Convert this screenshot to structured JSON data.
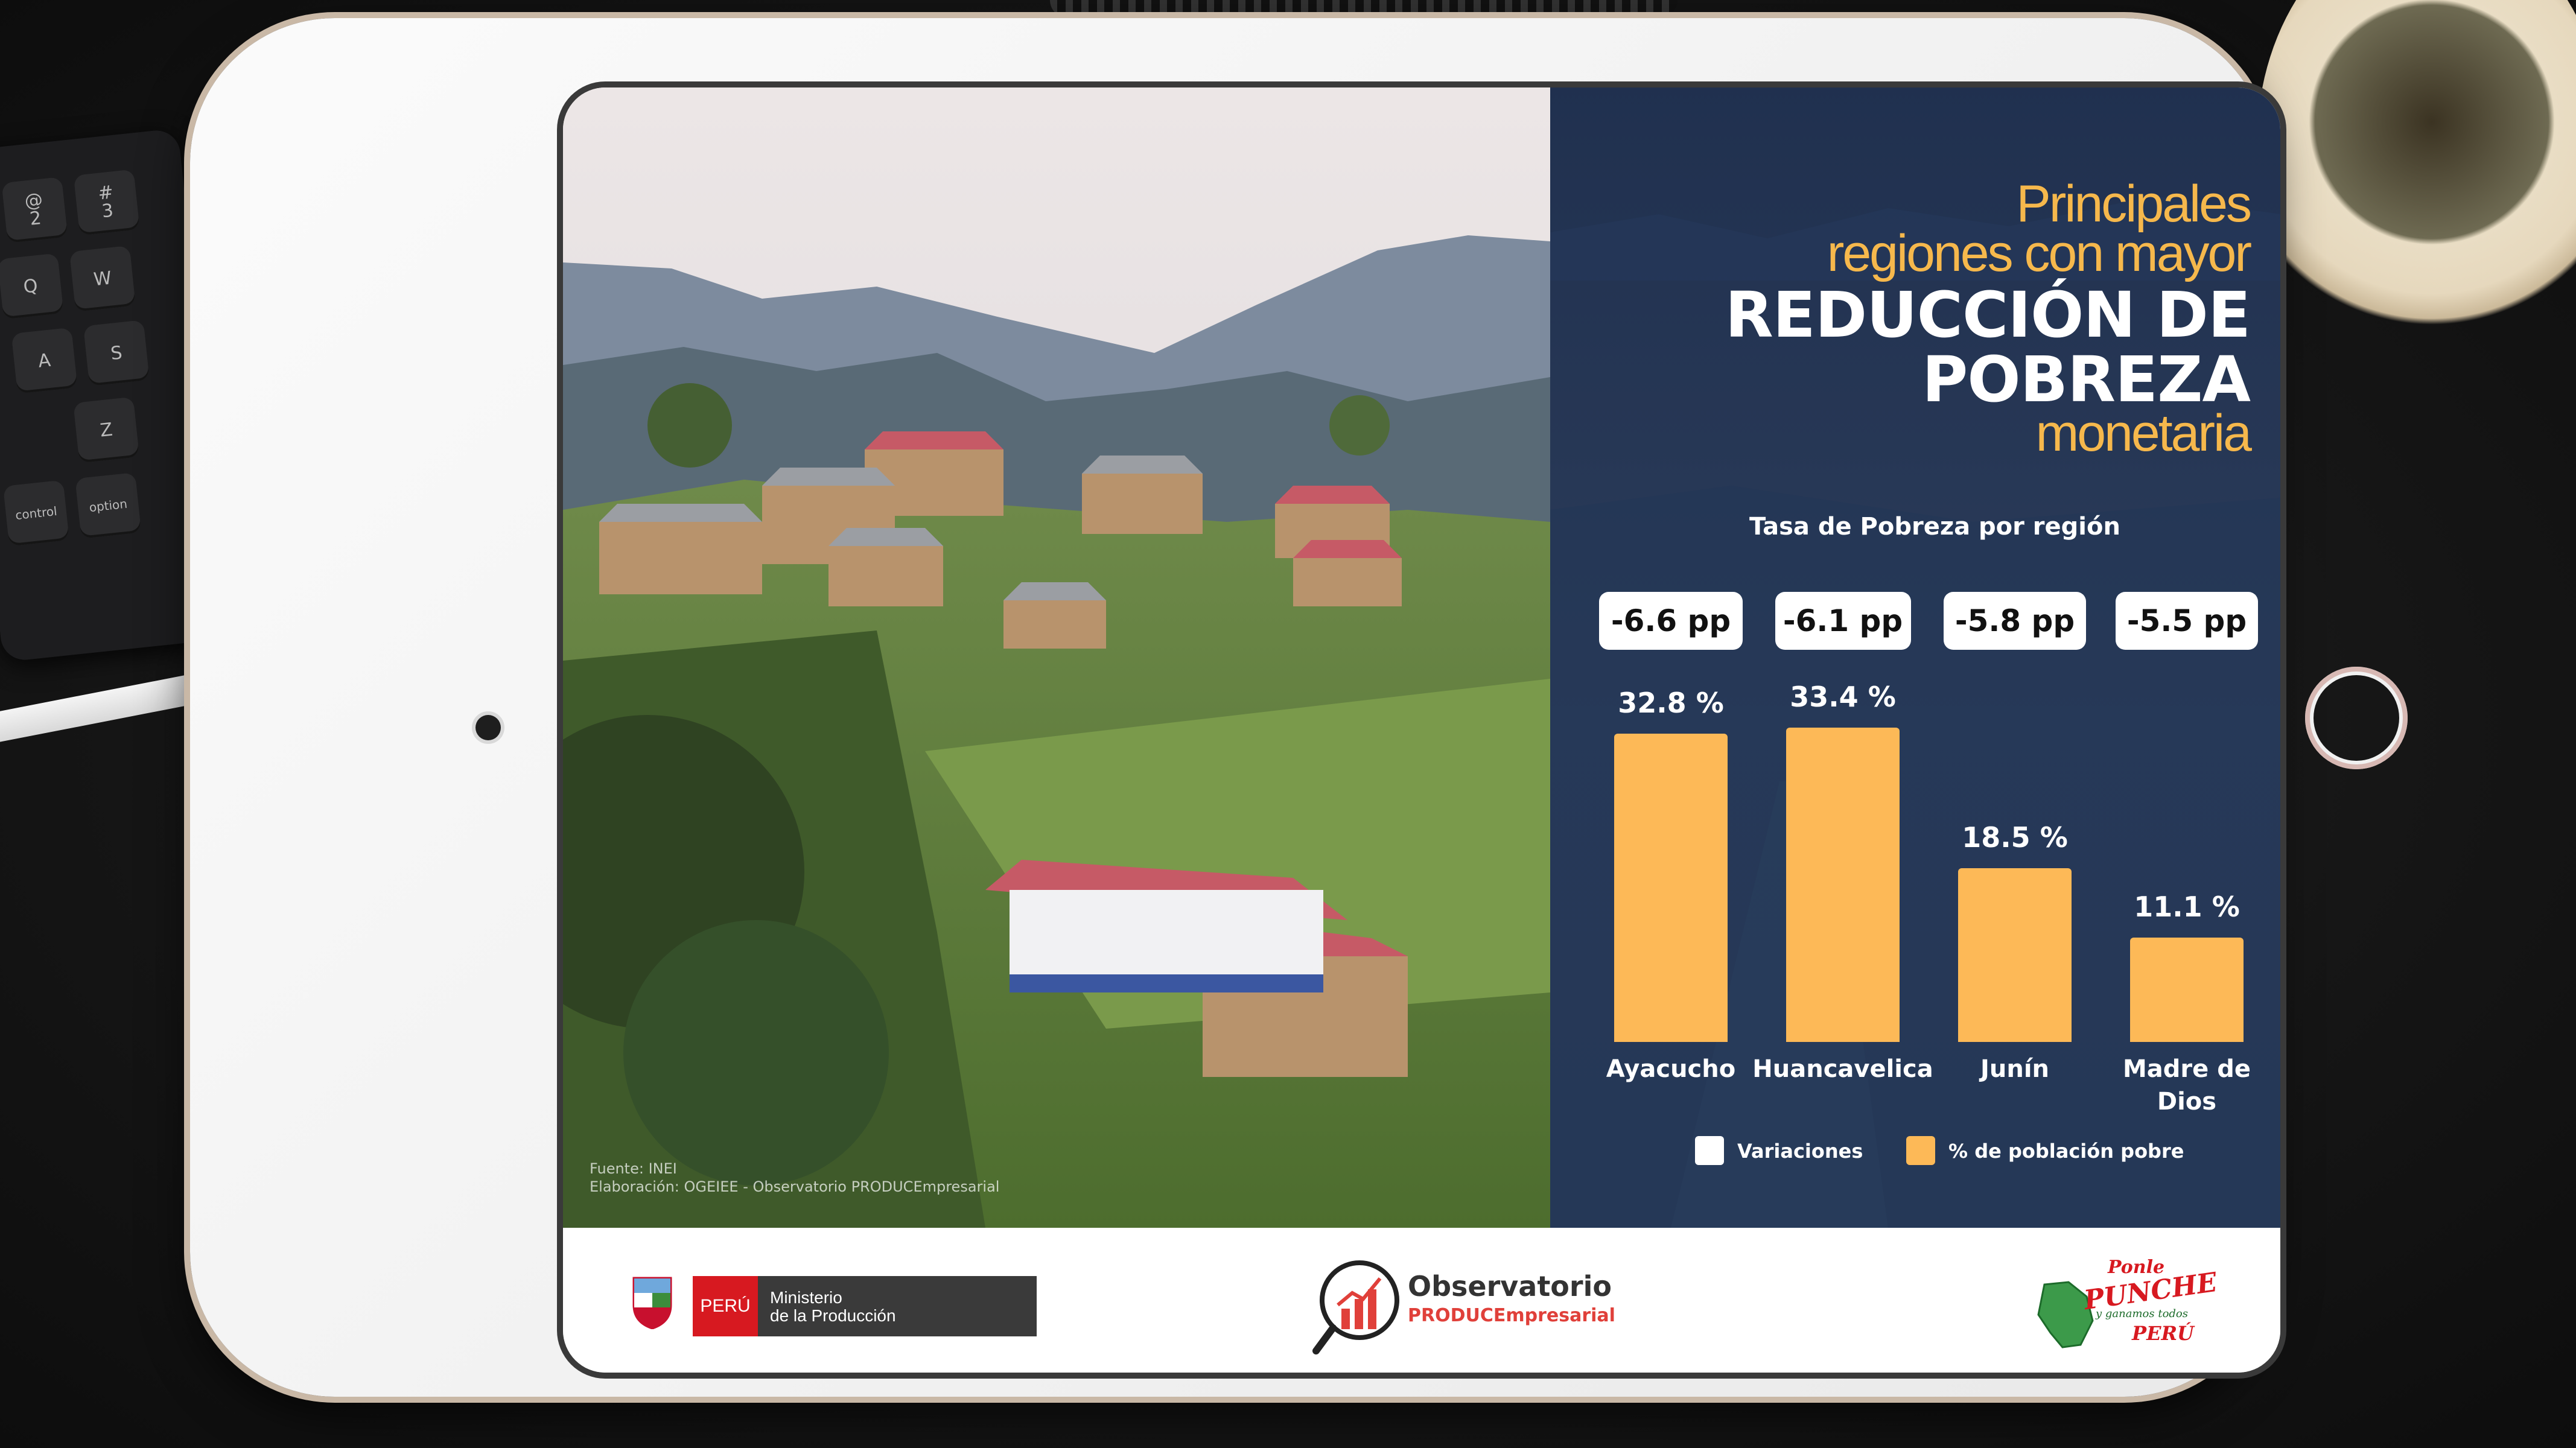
{
  "infographic": {
    "title_line1": "Principales",
    "title_line2": "regiones con mayor",
    "title_line3": "REDUCCIÓN DE",
    "title_line4": "POBREZA",
    "title_line5": "monetaria"
  },
  "chart_data": {
    "type": "bar",
    "title": "Tasa de Pobreza por región",
    "categories": [
      "Ayacucho",
      "Huancavelica",
      "Junín",
      "Madre de\nDios"
    ],
    "series": [
      {
        "name": "% de población pobre",
        "values": [
          32.8,
          33.4,
          18.5,
          11.1
        ]
      },
      {
        "name": "Variaciones",
        "values": [
          -6.6,
          -6.1,
          -5.8,
          -5.5
        ]
      }
    ],
    "value_labels": [
      "32.8 %",
      "33.4 %",
      "18.5 %",
      "11.1 %"
    ],
    "variation_labels": [
      "-6.6 pp",
      "-6.1 pp",
      "-5.8 pp",
      "-5.5 pp"
    ],
    "ylim": [
      0,
      34
    ],
    "legend": {
      "variaciones": "Variaciones",
      "poblacion": "% de población pobre"
    },
    "colors": {
      "bar": "#fdb957",
      "pill": "#ffffff",
      "panel": "#1b2d4d",
      "title_accent": "#f6b84c"
    }
  },
  "source": {
    "line1": "Fuente: INEI",
    "line2": "Elaboración: OGEIEE - Observatorio PRODUCEmpresarial"
  },
  "footer": {
    "peru_label": "PERÚ",
    "ministry_line1": "Ministerio",
    "ministry_line2": "de la Producción",
    "observatorio_title": "Observatorio",
    "observatorio_sub": "PRODUCEmpresarial",
    "ponle": "Ponle",
    "punche": "PUNCHE",
    "tagline": "y ganamos todos",
    "peru_brand": "PERÚ"
  },
  "keyboard": {
    "keys": [
      "@\n2",
      "#\n3",
      "Q",
      "W",
      "A",
      "S",
      "Z",
      "control",
      "option"
    ]
  }
}
